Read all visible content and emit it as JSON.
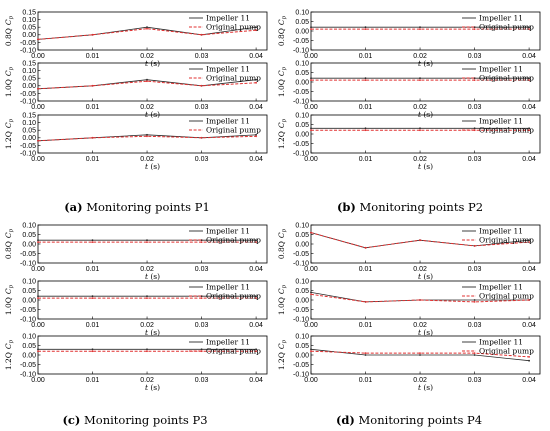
{
  "legend": {
    "impeller": "Impeller 11",
    "original": "Original pump"
  },
  "colors": {
    "impeller": "#2a2a2a",
    "original": "#e03030",
    "axis": "#000000"
  },
  "captions": [
    {
      "label": "(a)",
      "text": " Monitoring points P1"
    },
    {
      "label": "(b)",
      "text": " Monitoring points P2"
    },
    {
      "label": "(c)",
      "text": " Monitoring points P3"
    },
    {
      "label": "(d)",
      "text": " Monitoring points P4"
    }
  ],
  "xlabel_t": "t",
  "xlabel_unit": " (s)",
  "ylabel_prefix": [
    "0.8Q",
    "1.0Q",
    "1.2Q"
  ],
  "ylabel_var": "C",
  "ylabel_sub": "p",
  "chart_data": [
    {
      "type": "line",
      "panel": "P1",
      "condition": "0.8Q",
      "x": [
        0,
        0.01,
        0.02,
        0.03,
        0.04
      ],
      "xlim": [
        0,
        0.042
      ],
      "ylim": [
        -0.1,
        0.15
      ],
      "yticks": [
        -0.1,
        -0.05,
        0.0,
        0.05,
        0.1,
        0.15
      ],
      "xticks": [
        0.0,
        0.01,
        0.02,
        0.03,
        0.04
      ],
      "series": [
        {
          "name": "Impeller 11",
          "values": [
            -0.03,
            0.0,
            0.05,
            0.0,
            0.05
          ]
        },
        {
          "name": "Original pump",
          "values": [
            -0.03,
            0.0,
            0.04,
            0.0,
            0.03
          ]
        }
      ]
    },
    {
      "type": "line",
      "panel": "P1",
      "condition": "1.0Q",
      "x": [
        0,
        0.01,
        0.02,
        0.03,
        0.04
      ],
      "xlim": [
        0,
        0.042
      ],
      "ylim": [
        -0.1,
        0.15
      ],
      "yticks": [
        -0.1,
        -0.05,
        0.0,
        0.05,
        0.1,
        0.15
      ],
      "xticks": [
        0.0,
        0.01,
        0.02,
        0.03,
        0.04
      ],
      "series": [
        {
          "name": "Impeller 11",
          "values": [
            -0.02,
            0.0,
            0.04,
            0.0,
            0.04
          ]
        },
        {
          "name": "Original pump",
          "values": [
            -0.02,
            0.0,
            0.03,
            0.0,
            0.02
          ]
        }
      ]
    },
    {
      "type": "line",
      "panel": "P1",
      "condition": "1.2Q",
      "x": [
        0,
        0.01,
        0.02,
        0.03,
        0.04
      ],
      "xlim": [
        0,
        0.042
      ],
      "ylim": [
        -0.1,
        0.15
      ],
      "yticks": [
        -0.1,
        -0.05,
        0.0,
        0.05,
        0.1,
        0.15
      ],
      "xticks": [
        0.0,
        0.01,
        0.02,
        0.03,
        0.04
      ],
      "series": [
        {
          "name": "Impeller 11",
          "values": [
            -0.02,
            0.0,
            0.02,
            0.0,
            0.02
          ]
        },
        {
          "name": "Original pump",
          "values": [
            -0.02,
            0.0,
            0.01,
            0.0,
            0.01
          ]
        }
      ]
    },
    {
      "type": "line",
      "panel": "P2",
      "condition": "0.8Q",
      "x": [
        0,
        0.01,
        0.02,
        0.03,
        0.04
      ],
      "xlim": [
        0,
        0.042
      ],
      "ylim": [
        -0.1,
        0.1
      ],
      "yticks": [
        -0.1,
        -0.05,
        0.0,
        0.05,
        0.1
      ],
      "xticks": [
        0.0,
        0.01,
        0.02,
        0.03,
        0.04
      ],
      "series": [
        {
          "name": "Impeller 11",
          "values": [
            0.02,
            0.02,
            0.02,
            0.02,
            0.02
          ]
        },
        {
          "name": "Original pump",
          "values": [
            0.01,
            0.01,
            0.01,
            0.01,
            0.01
          ]
        }
      ]
    },
    {
      "type": "line",
      "panel": "P2",
      "condition": "1.0Q",
      "x": [
        0,
        0.01,
        0.02,
        0.03,
        0.04
      ],
      "xlim": [
        0,
        0.042
      ],
      "ylim": [
        -0.1,
        0.1
      ],
      "yticks": [
        -0.1,
        -0.05,
        0.0,
        0.05,
        0.1
      ],
      "xticks": [
        0.0,
        0.01,
        0.02,
        0.03,
        0.04
      ],
      "series": [
        {
          "name": "Impeller 11",
          "values": [
            0.02,
            0.02,
            0.02,
            0.02,
            0.02
          ]
        },
        {
          "name": "Original pump",
          "values": [
            0.01,
            0.01,
            0.01,
            0.01,
            0.01
          ]
        }
      ]
    },
    {
      "type": "line",
      "panel": "P2",
      "condition": "1.2Q",
      "x": [
        0,
        0.01,
        0.02,
        0.03,
        0.04
      ],
      "xlim": [
        0,
        0.042
      ],
      "ylim": [
        -0.1,
        0.1
      ],
      "yticks": [
        -0.1,
        -0.05,
        0.0,
        0.05,
        0.1
      ],
      "xticks": [
        0.0,
        0.01,
        0.02,
        0.03,
        0.04
      ],
      "series": [
        {
          "name": "Impeller 11",
          "values": [
            0.03,
            0.03,
            0.03,
            0.03,
            0.03
          ]
        },
        {
          "name": "Original pump",
          "values": [
            0.02,
            0.02,
            0.02,
            0.02,
            0.02
          ]
        }
      ]
    },
    {
      "type": "line",
      "panel": "P3",
      "condition": "0.8Q",
      "x": [
        0,
        0.01,
        0.02,
        0.03,
        0.04
      ],
      "xlim": [
        0,
        0.042
      ],
      "ylim": [
        -0.1,
        0.1
      ],
      "yticks": [
        -0.1,
        -0.05,
        0.0,
        0.05,
        0.1
      ],
      "xticks": [
        0.0,
        0.01,
        0.02,
        0.03,
        0.04
      ],
      "series": [
        {
          "name": "Impeller 11",
          "values": [
            0.02,
            0.02,
            0.02,
            0.02,
            0.02
          ]
        },
        {
          "name": "Original pump",
          "values": [
            0.01,
            0.01,
            0.01,
            0.01,
            0.01
          ]
        }
      ]
    },
    {
      "type": "line",
      "panel": "P3",
      "condition": "1.0Q",
      "x": [
        0,
        0.01,
        0.02,
        0.03,
        0.04
      ],
      "xlim": [
        0,
        0.042
      ],
      "ylim": [
        -0.1,
        0.1
      ],
      "yticks": [
        -0.1,
        -0.05,
        0.0,
        0.05,
        0.1
      ],
      "xticks": [
        0.0,
        0.01,
        0.02,
        0.03,
        0.04
      ],
      "series": [
        {
          "name": "Impeller 11",
          "values": [
            0.02,
            0.02,
            0.02,
            0.02,
            0.02
          ]
        },
        {
          "name": "Original pump",
          "values": [
            0.01,
            0.01,
            0.01,
            0.01,
            0.01
          ]
        }
      ]
    },
    {
      "type": "line",
      "panel": "P3",
      "condition": "1.2Q",
      "x": [
        0,
        0.01,
        0.02,
        0.03,
        0.04
      ],
      "xlim": [
        0,
        0.042
      ],
      "ylim": [
        -0.1,
        0.1
      ],
      "yticks": [
        -0.1,
        -0.05,
        0.0,
        0.05,
        0.1
      ],
      "xticks": [
        0.0,
        0.01,
        0.02,
        0.03,
        0.04
      ],
      "series": [
        {
          "name": "Impeller 11",
          "values": [
            0.03,
            0.03,
            0.03,
            0.03,
            0.03
          ]
        },
        {
          "name": "Original pump",
          "values": [
            0.02,
            0.02,
            0.02,
            0.02,
            0.02
          ]
        }
      ]
    },
    {
      "type": "line",
      "panel": "P4",
      "condition": "0.8Q",
      "x": [
        0,
        0.01,
        0.02,
        0.03,
        0.04
      ],
      "xlim": [
        0,
        0.042
      ],
      "ylim": [
        -0.1,
        0.1
      ],
      "yticks": [
        -0.1,
        -0.05,
        0.0,
        0.05,
        0.1
      ],
      "xticks": [
        0.0,
        0.01,
        0.02,
        0.03,
        0.04
      ],
      "series": [
        {
          "name": "Impeller 11",
          "values": [
            0.06,
            -0.02,
            0.02,
            -0.01,
            0.02
          ]
        },
        {
          "name": "Original pump",
          "values": [
            0.06,
            -0.02,
            0.02,
            -0.01,
            0.01
          ]
        }
      ]
    },
    {
      "type": "line",
      "panel": "P4",
      "condition": "1.0Q",
      "x": [
        0,
        0.01,
        0.02,
        0.03,
        0.04
      ],
      "xlim": [
        0,
        0.042
      ],
      "ylim": [
        -0.1,
        0.1
      ],
      "yticks": [
        -0.1,
        -0.05,
        0.0,
        0.05,
        0.1
      ],
      "xticks": [
        0.0,
        0.01,
        0.02,
        0.03,
        0.04
      ],
      "series": [
        {
          "name": "Impeller 11",
          "values": [
            0.04,
            -0.01,
            0.0,
            0.0,
            0.0
          ]
        },
        {
          "name": "Original pump",
          "values": [
            0.03,
            -0.01,
            0.0,
            -0.01,
            0.0
          ]
        }
      ]
    },
    {
      "type": "line",
      "panel": "P4",
      "condition": "1.2Q",
      "x": [
        0,
        0.01,
        0.02,
        0.03,
        0.04
      ],
      "xlim": [
        0,
        0.042
      ],
      "ylim": [
        -0.1,
        0.1
      ],
      "yticks": [
        -0.1,
        -0.05,
        0.0,
        0.05,
        0.1
      ],
      "xticks": [
        0.0,
        0.01,
        0.02,
        0.03,
        0.04
      ],
      "series": [
        {
          "name": "Impeller 11",
          "values": [
            0.03,
            0.0,
            0.0,
            0.0,
            -0.03
          ]
        },
        {
          "name": "Original pump",
          "values": [
            0.02,
            0.01,
            0.01,
            0.01,
            -0.01
          ]
        }
      ]
    }
  ]
}
